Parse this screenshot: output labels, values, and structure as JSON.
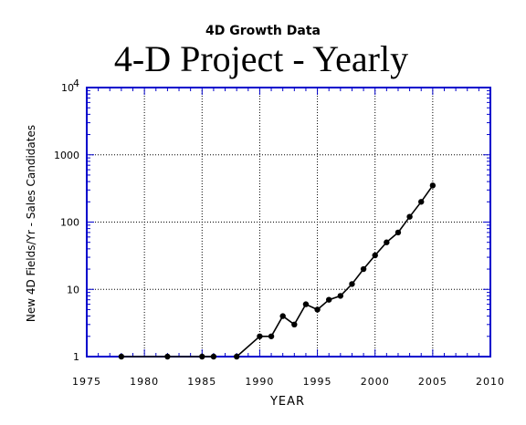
{
  "chart_data": {
    "type": "line",
    "supertitle": "4D Growth Data",
    "title": "4-D Project - Yearly",
    "xlabel": "YEAR",
    "ylabel": "New 4D Fields/Yr - Sales Candidates",
    "xlim": [
      1975,
      2010
    ],
    "ylim": [
      1,
      10000
    ],
    "yscale": "log",
    "grid": true,
    "x_ticks": [
      "1975",
      "1980",
      "1985",
      "1990",
      "1995",
      "2000",
      "2005",
      "2010"
    ],
    "y_ticks": [
      {
        "value": 1,
        "label": "1"
      },
      {
        "value": 10,
        "label": "10"
      },
      {
        "value": 100,
        "label": "100"
      },
      {
        "value": 1000,
        "label": "1000"
      },
      {
        "value": 10000,
        "label": "10",
        "sup": "4"
      }
    ],
    "colors": {
      "axes": "#0000cc",
      "series": "#000000",
      "grid": "#000000"
    },
    "series": [
      {
        "x": [
          1978,
          1982,
          1985,
          1986,
          1988,
          1990,
          1991,
          1992,
          1993,
          1994,
          1995,
          1996,
          1997,
          1998,
          1999,
          2000,
          2001,
          2002,
          2003,
          2004,
          2005
        ],
        "values": [
          1,
          1,
          1,
          1,
          1,
          2,
          2,
          4,
          3,
          6,
          5,
          7,
          8,
          12,
          20,
          32,
          50,
          70,
          120,
          200,
          350
        ]
      }
    ],
    "segments": [
      [
        0,
        1
      ],
      [
        1,
        2
      ],
      [
        2,
        3
      ],
      [
        4,
        20
      ]
    ]
  }
}
